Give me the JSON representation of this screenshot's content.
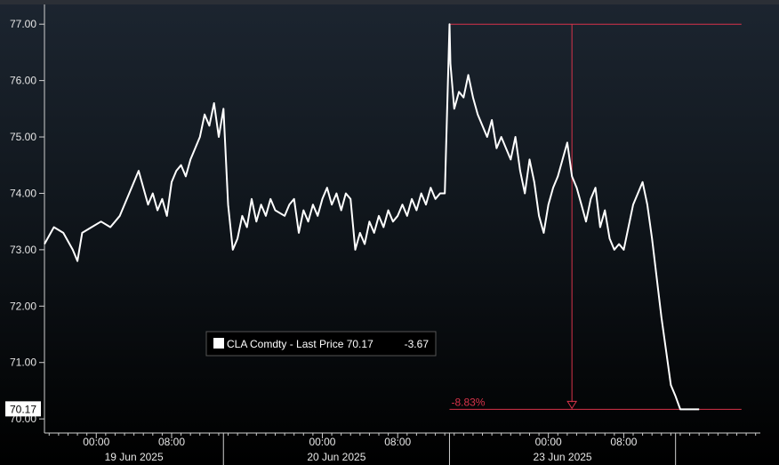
{
  "chart_data": {
    "type": "line",
    "title": "",
    "xlabel": "",
    "ylabel": "",
    "ylim": [
      69.75,
      77.35
    ],
    "grid": false,
    "legend_placement": "center-left",
    "y_ticks": [
      "77.00",
      "76.00",
      "75.00",
      "74.00",
      "73.00",
      "72.00",
      "71.00",
      "70.00"
    ],
    "y_tick_values": [
      77,
      76,
      75,
      74,
      73,
      72,
      71,
      70
    ],
    "x_time_labels": [
      "00:00",
      "08:00",
      "00:00",
      "08:00",
      "00:00",
      "08:00"
    ],
    "x_date_labels": [
      "19 Jun 2025",
      "20 Jun 2025",
      "23 Jun 2025"
    ],
    "x_range_hours": [
      -5.5,
      70.5
    ],
    "x_time_tick_hours": [
      0,
      8,
      24,
      32,
      48,
      56
    ],
    "x_day_boundary_hours": [
      13.5,
      37.5,
      61.5
    ],
    "series": [
      {
        "name": "CLA Comdty - Last Price",
        "color": "#ffffff",
        "x_hours": [
          -5.5,
          -4.5,
          -3.5,
          -2.5,
          -2.0,
          -1.5,
          -0.5,
          0.5,
          1.5,
          2.5,
          3.5,
          4.5,
          5.0,
          5.5,
          6.0,
          6.5,
          7.0,
          7.5,
          8.0,
          8.5,
          9.0,
          9.5,
          10.0,
          10.5,
          11.0,
          11.5,
          12.0,
          12.5,
          13.0,
          13.5,
          14.0,
          14.5,
          15.0,
          15.5,
          16.0,
          16.5,
          17.0,
          17.5,
          18.0,
          18.5,
          19.0,
          20.0,
          20.5,
          21.0,
          21.5,
          22.0,
          22.5,
          23.0,
          23.5,
          24.0,
          24.5,
          25.0,
          25.5,
          26.0,
          26.5,
          27.0,
          27.5,
          28.0,
          28.5,
          29.0,
          29.5,
          30.0,
          30.5,
          31.0,
          31.5,
          32.0,
          32.5,
          33.0,
          33.5,
          34.0,
          34.5,
          35.0,
          35.5,
          36.0,
          36.5,
          37.0,
          37.5,
          37.6,
          38.0,
          38.5,
          39.0,
          39.5,
          40.0,
          40.5,
          41.0,
          41.5,
          42.0,
          42.5,
          43.0,
          43.5,
          44.0,
          44.5,
          45.0,
          45.5,
          46.0,
          46.5,
          47.0,
          47.5,
          48.0,
          48.5,
          49.0,
          49.5,
          50.0,
          50.5,
          51.0,
          51.5,
          52.0,
          52.5,
          53.0,
          53.5,
          54.0,
          54.5,
          55.0,
          55.5,
          56.0,
          56.5,
          57.0,
          57.5,
          58.0,
          58.5,
          59.0,
          59.5,
          60.0,
          60.5,
          61.0,
          61.5,
          62.0,
          62.5,
          63.0,
          63.5,
          64.0
        ],
        "values": [
          73.1,
          73.4,
          73.3,
          73.0,
          72.8,
          73.3,
          73.4,
          73.5,
          73.4,
          73.6,
          74.0,
          74.4,
          74.1,
          73.8,
          74.0,
          73.7,
          73.9,
          73.6,
          74.2,
          74.4,
          74.5,
          74.3,
          74.6,
          74.8,
          75.0,
          75.4,
          75.2,
          75.6,
          75.0,
          75.5,
          73.8,
          73.0,
          73.2,
          73.6,
          73.4,
          73.9,
          73.5,
          73.8,
          73.6,
          73.9,
          73.7,
          73.6,
          73.8,
          73.9,
          73.3,
          73.7,
          73.5,
          73.8,
          73.6,
          73.9,
          74.1,
          73.8,
          74.0,
          73.7,
          74.0,
          73.9,
          73.0,
          73.3,
          73.1,
          73.5,
          73.3,
          73.6,
          73.4,
          73.7,
          73.5,
          73.6,
          73.8,
          73.6,
          73.9,
          73.7,
          74.0,
          73.8,
          74.1,
          73.9,
          74.0,
          74.0,
          77.0,
          76.3,
          75.5,
          75.8,
          75.7,
          76.1,
          75.7,
          75.4,
          75.2,
          75.0,
          75.3,
          74.8,
          75.0,
          74.8,
          74.6,
          75.0,
          74.4,
          74.0,
          74.6,
          74.2,
          73.6,
          73.3,
          73.8,
          74.1,
          74.3,
          74.6,
          74.9,
          74.3,
          74.1,
          73.8,
          73.5,
          73.9,
          74.1,
          73.4,
          73.7,
          73.2,
          73.0,
          73.1,
          73.0,
          73.4,
          73.8,
          74.0,
          74.2,
          73.8,
          73.2,
          72.5,
          71.8,
          71.2,
          70.6,
          70.4,
          70.17,
          70.17,
          70.17,
          70.17,
          70.17
        ],
        "last_value": 70.17,
        "change": -3.67
      }
    ],
    "annotations": {
      "high": 77.0,
      "low": 70.17,
      "change_pct_label": "-8.83%"
    }
  },
  "legend": {
    "security": "CLA Comdty - Last Price 70.17",
    "change": "-3.67"
  },
  "last_price_tag": "70.17",
  "colors": {
    "series": "#ffffff",
    "annotation": "#d8334a",
    "axis": "#cfcfcf",
    "last_tag_bg": "#ffffff"
  }
}
